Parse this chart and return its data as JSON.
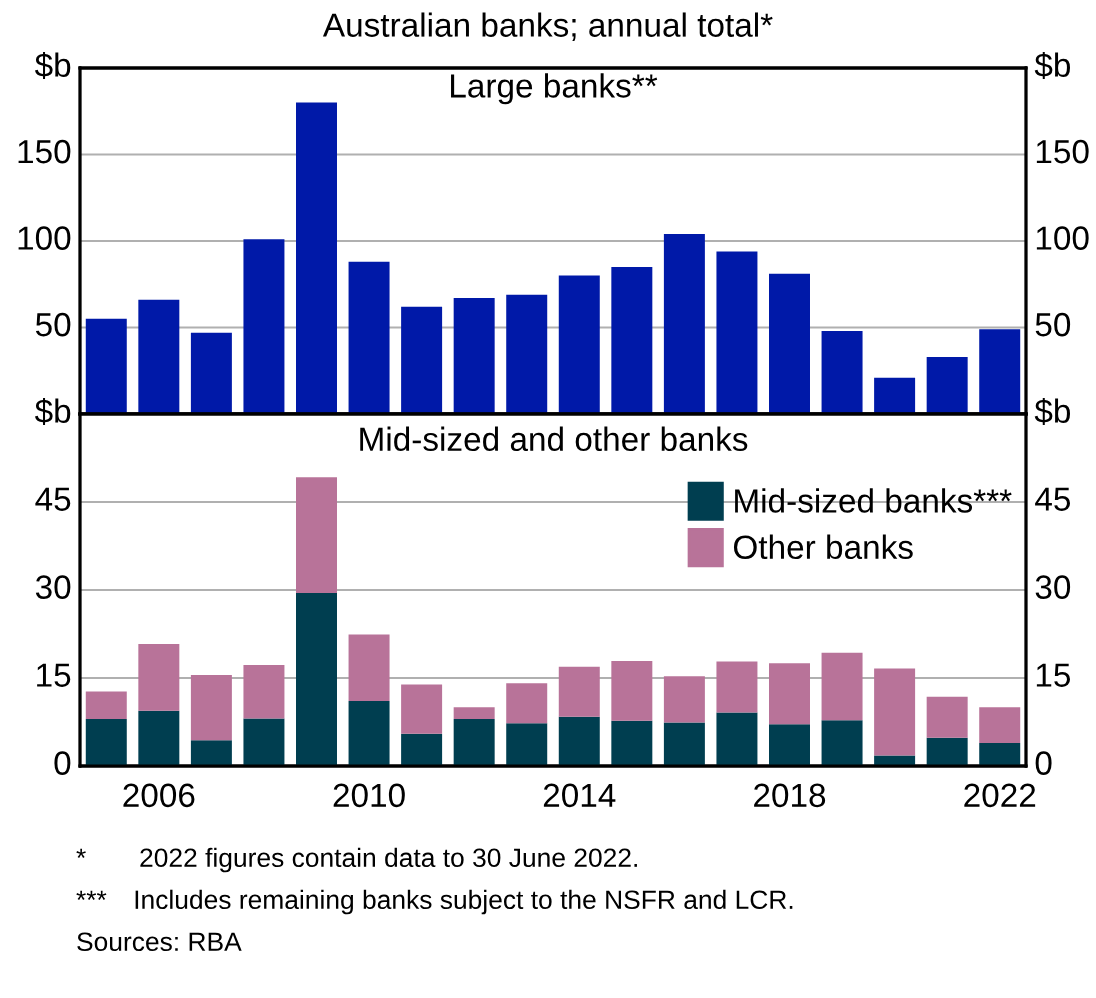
{
  "chart_data": [
    {
      "type": "bar",
      "title": "Australian banks; annual total*",
      "subtitle": "Large banks**",
      "categories": [
        null,
        "2006",
        null,
        null,
        null,
        "2010",
        null,
        null,
        null,
        "2014",
        null,
        null,
        null,
        "2018",
        null,
        null,
        null,
        "2022"
      ],
      "series": [
        {
          "color": "#0019a8",
          "values": [
            55,
            66,
            47,
            101,
            180,
            88,
            62,
            67,
            69,
            80,
            85,
            104,
            94,
            81,
            48,
            21,
            33,
            49
          ]
        }
      ],
      "ylim": [
        0,
        200
      ],
      "yticks": [
        50,
        100,
        150,
        {
          "value": 200,
          "label": "$b"
        }
      ],
      "y2lim": [
        0,
        200
      ],
      "y2ticks": [
        50,
        100,
        150,
        {
          "value": 200,
          "label": "$b"
        }
      ],
      "grid": "y",
      "tick_labels": "y"
    },
    {
      "type": "bar",
      "title": "Mid-sized and other banks",
      "stacked": true,
      "categories": [
        null,
        "2006",
        null,
        null,
        null,
        "2010",
        null,
        null,
        null,
        "2014",
        null,
        null,
        null,
        "2018",
        null,
        null,
        null,
        "2022"
      ],
      "series": [
        {
          "name": "Mid-sized banks***",
          "color": "#003e50",
          "values": [
            8.0,
            9.4,
            4.4,
            8.1,
            29.5,
            11.1,
            5.5,
            8.0,
            7.3,
            8.4,
            7.7,
            7.4,
            9.1,
            7.1,
            7.8,
            1.8,
            4.8,
            3.9
          ]
        },
        {
          "name": "Other banks",
          "color": "#b87399",
          "values": [
            4.7,
            11.4,
            11.1,
            9.1,
            19.7,
            11.3,
            8.4,
            2.0,
            6.8,
            8.5,
            10.2,
            7.9,
            8.7,
            10.4,
            11.5,
            14.8,
            7.0,
            6.1
          ]
        }
      ],
      "ylim": [
        0,
        60
      ],
      "yticks": [
        0,
        15,
        30,
        45,
        {
          "value": 60,
          "label": "$b"
        }
      ],
      "y2lim": [
        0,
        60
      ],
      "y2ticks": [
        0,
        15,
        30,
        45,
        {
          "value": 60,
          "label": "$b"
        }
      ],
      "grid": "y",
      "legend": "top right",
      "annotations": [
        "*  2022 figures contain data to 30 June 2022.",
        "*** Includes remaining banks subject to the NSFR and LCR.",
        "Sources: RBA"
      ]
    }
  ]
}
